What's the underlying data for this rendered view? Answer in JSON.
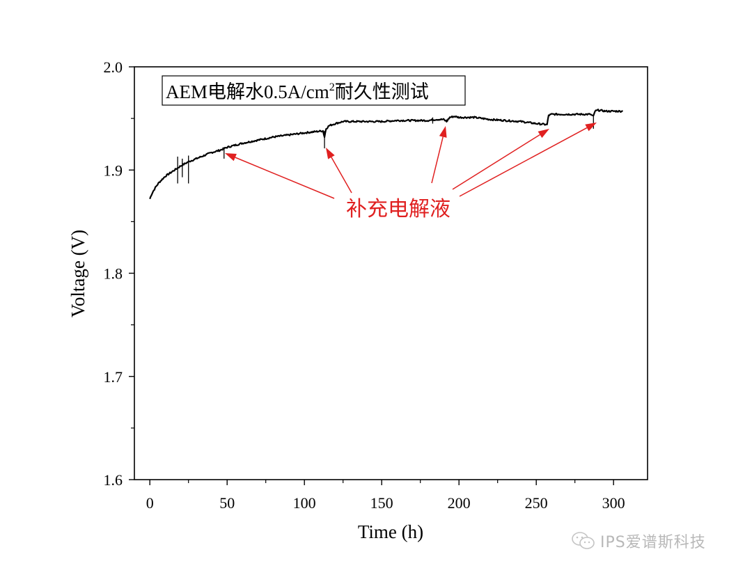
{
  "chart_data": {
    "type": "line",
    "title": "",
    "xlabel": "Time (h)",
    "ylabel": "Voltage (V)",
    "xlim": [
      -10,
      322
    ],
    "ylim": [
      1.6,
      2.0
    ],
    "x_ticks": [
      0,
      50,
      100,
      150,
      200,
      250,
      300
    ],
    "x_tick_labels": [
      "0",
      "50",
      "100",
      "150",
      "200",
      "250",
      "300"
    ],
    "y_ticks": [
      1.6,
      1.7,
      1.8,
      1.9,
      2.0
    ],
    "y_tick_labels": [
      "1.6",
      "1.7",
      "1.8",
      "1.9",
      "2.0"
    ],
    "grid": false,
    "legend": "none",
    "line_color": "#000000",
    "series": [
      {
        "x": [
          0,
          1,
          2,
          4,
          6,
          8,
          10,
          13,
          16,
          20,
          25,
          30,
          35,
          40,
          45,
          50,
          55,
          60,
          70,
          80,
          90,
          100,
          112,
          113,
          114,
          116,
          120,
          125,
          130,
          140,
          150,
          160,
          170,
          180,
          185,
          190,
          192,
          194,
          197,
          200,
          210,
          220,
          230,
          240,
          250,
          257,
          258,
          260,
          265,
          270,
          280,
          285,
          287,
          288,
          290,
          295,
          300,
          306
        ],
        "y": [
          1.872,
          1.876,
          1.879,
          1.884,
          1.888,
          1.891,
          1.894,
          1.897,
          1.9,
          1.904,
          1.908,
          1.911,
          1.914,
          1.917,
          1.919,
          1.922,
          1.924,
          1.926,
          1.929,
          1.932,
          1.934,
          1.936,
          1.938,
          1.932,
          1.94,
          1.943,
          1.945,
          1.947,
          1.947,
          1.947,
          1.947,
          1.948,
          1.948,
          1.948,
          1.949,
          1.949,
          1.947,
          1.951,
          1.952,
          1.951,
          1.951,
          1.949,
          1.948,
          1.947,
          1.945,
          1.944,
          1.953,
          1.954,
          1.954,
          1.954,
          1.954,
          1.954,
          1.952,
          1.957,
          1.958,
          1.957,
          1.957,
          1.957
        ]
      }
    ],
    "spikes": [
      {
        "x": 18,
        "y_top": 1.913,
        "y_bottom": 1.887
      },
      {
        "x": 21,
        "y_top": 1.911,
        "y_bottom": 1.893
      },
      {
        "x": 25,
        "y_top": 1.914,
        "y_bottom": 1.887
      },
      {
        "x": 48,
        "y_top": 1.921,
        "y_bottom": 1.911
      },
      {
        "x": 113,
        "y_top": 1.938,
        "y_bottom": 1.921
      },
      {
        "x": 183,
        "y_top": 1.951,
        "y_bottom": 1.945
      },
      {
        "x": 192,
        "y_top": 1.949,
        "y_bottom": 1.946
      },
      {
        "x": 287,
        "y_top": 1.953,
        "y_bottom": 1.94
      }
    ],
    "annotation_box": {
      "prefix": "AEM电解水0.5A/cm",
      "superscript": "2",
      "suffix": "耐久性测试"
    },
    "annotation": {
      "text": "补充电解液",
      "color": "#e02020",
      "arrows": [
        {
          "from": [
            480,
            285
          ],
          "to": [
            323,
            220
          ]
        },
        {
          "from": [
            505,
            277
          ],
          "to": [
            468,
            212
          ]
        },
        {
          "from": [
            620,
            263
          ],
          "to": [
            640,
            181
          ]
        },
        {
          "from": [
            650,
            272
          ],
          "to": [
            789,
            185
          ]
        },
        {
          "from": [
            660,
            282
          ],
          "to": [
            857,
            176
          ]
        }
      ]
    }
  },
  "watermark": {
    "text": "IPS爱谱斯科技",
    "icon": "wechat-icon"
  }
}
